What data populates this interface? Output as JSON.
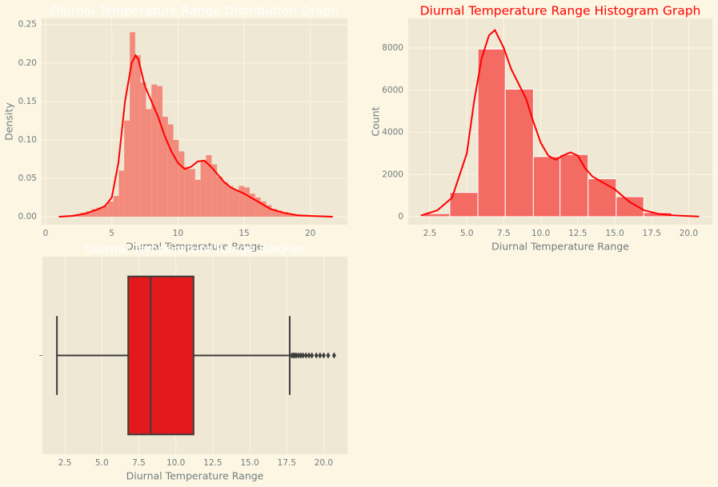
{
  "chart_data": [
    {
      "type": "histogram",
      "title": "Diurnal Temperature Range Distribution Graph",
      "title_color": "#ffffff",
      "xlabel": "Diurnal Temperature Range",
      "ylabel": "Density",
      "bins": [
        1.0,
        1.41,
        1.82,
        2.24,
        2.65,
        3.06,
        3.47,
        3.88,
        4.3,
        4.71,
        5.12,
        5.53,
        5.94,
        6.36,
        6.77,
        7.18,
        7.59,
        8.0,
        8.42,
        8.83,
        9.24,
        9.65,
        10.06,
        10.48,
        10.89,
        11.3,
        11.71,
        12.12,
        12.54,
        12.95,
        13.36,
        13.77,
        14.18,
        14.6,
        15.01,
        15.42,
        15.83,
        16.24,
        16.66,
        17.07,
        17.48,
        17.89,
        18.3,
        18.72,
        19.13,
        19.54,
        19.95,
        20.36,
        20.78,
        21.19,
        21.6
      ],
      "values": [
        0.0,
        0.001,
        0.002,
        0.003,
        0.005,
        0.007,
        0.01,
        0.012,
        0.014,
        0.02,
        0.027,
        0.06,
        0.125,
        0.24,
        0.21,
        0.175,
        0.14,
        0.172,
        0.17,
        0.13,
        0.12,
        0.1,
        0.085,
        0.065,
        0.062,
        0.048,
        0.073,
        0.08,
        0.068,
        0.052,
        0.045,
        0.04,
        0.035,
        0.04,
        0.038,
        0.03,
        0.025,
        0.02,
        0.015,
        0.01,
        0.008,
        0.006,
        0.004,
        0.003,
        0.002,
        0.002,
        0.001,
        0.001,
        0.001,
        0.0
      ],
      "color": "#f28b7c",
      "edgecolor": "none",
      "kde": {
        "color": "#ff0000",
        "x": [
          1,
          2,
          3,
          4,
          4.5,
          5,
          5.5,
          6,
          6.5,
          6.8,
          7,
          7.5,
          8,
          8.5,
          9,
          9.5,
          10,
          10.5,
          11,
          11.5,
          12,
          12.5,
          13,
          13.5,
          14,
          15,
          16,
          17,
          18,
          19,
          20,
          21.7
        ],
        "values": [
          0.0,
          0.001,
          0.004,
          0.01,
          0.014,
          0.025,
          0.07,
          0.15,
          0.2,
          0.21,
          0.205,
          0.17,
          0.15,
          0.13,
          0.105,
          0.085,
          0.07,
          0.062,
          0.065,
          0.072,
          0.073,
          0.065,
          0.055,
          0.045,
          0.038,
          0.03,
          0.02,
          0.01,
          0.005,
          0.002,
          0.001,
          0.0
        ]
      },
      "xlim": [
        -0.3,
        22.8
      ],
      "xticks": [
        0,
        5,
        10,
        15,
        20
      ],
      "ylim": [
        -0.0104,
        0.258
      ],
      "yticks": [
        {
          "value": 0,
          "label": "0.00"
        },
        {
          "value": 0.05,
          "label": "0.05"
        },
        {
          "value": 0.1,
          "label": "0.10"
        },
        {
          "value": 0.15,
          "label": "0.15"
        },
        {
          "value": 0.2,
          "label": "0.20"
        },
        {
          "value": 0.25,
          "label": "0.25"
        }
      ],
      "grid": true
    },
    {
      "type": "histogram",
      "title": "Diurnal Temperature Range Histogram Graph",
      "title_color": "#ff0000",
      "xlabel": "Diurnal Temperature Range",
      "ylabel": "Count",
      "bins": [
        1.96,
        3.85,
        5.75,
        7.6,
        9.5,
        11.3,
        13.2,
        15.1,
        16.96,
        18.85,
        20.7
      ],
      "values": [
        150,
        1150,
        7950,
        6050,
        2850,
        2950,
        1800,
        950,
        200,
        30
      ],
      "color": "#f46b64",
      "edgecolor": "#ffffff",
      "kde": {
        "color": "#ff0000",
        "x": [
          1.9,
          3,
          4,
          5,
          5.5,
          6,
          6.5,
          6.9,
          7.5,
          8,
          8.5,
          9,
          9.5,
          10,
          10.5,
          11,
          11.5,
          12,
          12.5,
          13,
          13.5,
          14,
          15,
          16,
          17,
          18,
          19,
          20.7
        ],
        "values": [
          60,
          300,
          900,
          3000,
          5500,
          7500,
          8600,
          8850,
          8000,
          7000,
          6300,
          5600,
          4500,
          3500,
          2900,
          2700,
          2900,
          3050,
          2900,
          2300,
          1900,
          1700,
          1300,
          700,
          300,
          130,
          60,
          10
        ]
      },
      "xlim": [
        1.04,
        21.6
      ],
      "xticks": [
        {
          "value": 2.5,
          "label": "2.5"
        },
        {
          "value": 5,
          "label": "5.0"
        },
        {
          "value": 7.5,
          "label": "7.5"
        },
        {
          "value": 10,
          "label": "10.0"
        },
        {
          "value": 12.5,
          "label": "12.5"
        },
        {
          "value": 15,
          "label": "15.0"
        },
        {
          "value": 17.5,
          "label": "17.5"
        },
        {
          "value": 20,
          "label": "20.0"
        }
      ],
      "ylim": [
        -379,
        9403
      ],
      "yticks": [
        0,
        2000,
        4000,
        6000,
        8000
      ],
      "grid": true
    },
    {
      "type": "box",
      "title": "Diurnal Temperature Range BoxPlot",
      "title_color": "#ffffff",
      "xlabel": "Diurnal Temperature Range",
      "box": {
        "whislo": 1.96,
        "q1": 6.78,
        "med": 8.3,
        "q3": 11.2,
        "whishi": 17.7,
        "fliers": [
          17.85,
          17.95,
          18.05,
          18.15,
          18.3,
          18.45,
          18.6,
          18.8,
          19.0,
          19.2,
          19.5,
          19.75,
          20.0,
          20.3,
          20.7
        ]
      },
      "color": "#e31a1c",
      "edgecolor": "#3d3d3d",
      "xlim": [
        0.98,
        21.6
      ],
      "xticks": [
        {
          "value": 2.5,
          "label": "2.5"
        },
        {
          "value": 5,
          "label": "5.0"
        },
        {
          "value": 7.5,
          "label": "7.5"
        },
        {
          "value": 10,
          "label": "10.0"
        },
        {
          "value": 12.5,
          "label": "12.5"
        },
        {
          "value": 15,
          "label": "15.0"
        },
        {
          "value": 17.5,
          "label": "17.5"
        },
        {
          "value": 20,
          "label": "20.0"
        }
      ],
      "grid": true
    }
  ]
}
